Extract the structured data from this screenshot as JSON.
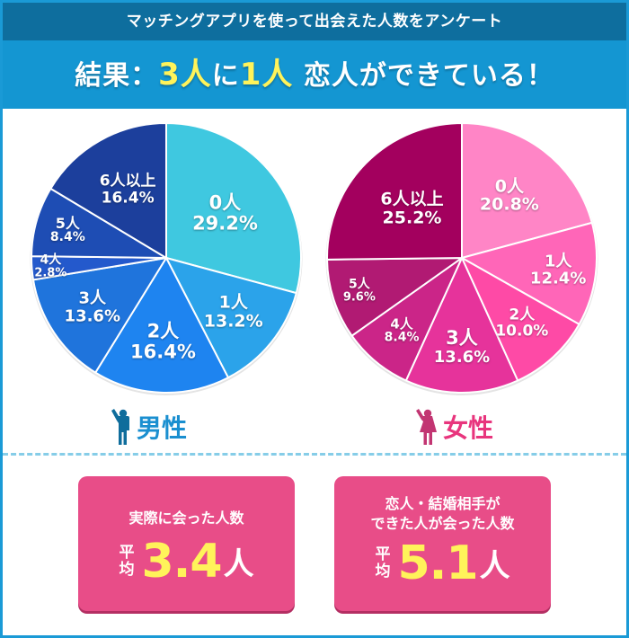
{
  "header": {
    "subtitle": "マッチングアプリを使って出会えた人数をアンケート",
    "title_prefix": "結果：",
    "title_hl1": "3人",
    "title_mid": "に",
    "title_hl2": "1人",
    "title_suffix": " 恋人ができている！"
  },
  "colors": {
    "frame": "#1a9ad6",
    "header_dark": "#0e6e9e",
    "header_main": "#1496d2",
    "highlight_yellow": "#fff35a",
    "stat_box": "#e84d88",
    "male_label": "#1a8fd0",
    "female_label": "#e8357d",
    "male_icon": "#0f6d9c",
    "female_icon": "#c23572"
  },
  "chart_data": [
    {
      "type": "pie",
      "title": "男性",
      "start_angle": "12 o'clock, clockwise",
      "categories": [
        "0人",
        "1人",
        "2人",
        "3人",
        "4人",
        "5人",
        "6人以上"
      ],
      "values": [
        29.2,
        13.2,
        16.4,
        13.6,
        2.8,
        8.4,
        16.4
      ],
      "labels": [
        "29.2%",
        "13.2%",
        "16.4%",
        "13.6%",
        "2.8%",
        "8.4%",
        "16.4%"
      ],
      "colors": [
        "#3fc8e0",
        "#2ba3ea",
        "#1e84f0",
        "#1f74dc",
        "#2459cc",
        "#1e4db4",
        "#1c3f9c"
      ],
      "unit": "%"
    },
    {
      "type": "pie",
      "title": "女性",
      "start_angle": "12 o'clock, clockwise",
      "categories": [
        "0人",
        "1人",
        "2人",
        "3人",
        "4人",
        "5人",
        "6人以上"
      ],
      "values": [
        20.8,
        12.4,
        10.0,
        13.6,
        8.4,
        9.6,
        25.2
      ],
      "labels": [
        "20.8%",
        "12.4%",
        "10.0%",
        "13.6%",
        "8.4%",
        "9.6%",
        "25.2%"
      ],
      "colors": [
        "#ff85c6",
        "#ff66b8",
        "#fe4aa6",
        "#e6339b",
        "#cb2588",
        "#b11a73",
        "#a3005e"
      ],
      "unit": "%"
    }
  ],
  "genders": {
    "male": "男性",
    "female": "女性"
  },
  "stats": [
    {
      "title_lines": [
        "実際に会った人数"
      ],
      "avg_label_1": "平",
      "avg_label_2": "均",
      "value": "3.4",
      "unit": "人"
    },
    {
      "title_lines": [
        "恋人・結婚相手が",
        "できた人が会った人数"
      ],
      "avg_label_1": "平",
      "avg_label_2": "均",
      "value": "5.1",
      "unit": "人"
    }
  ]
}
